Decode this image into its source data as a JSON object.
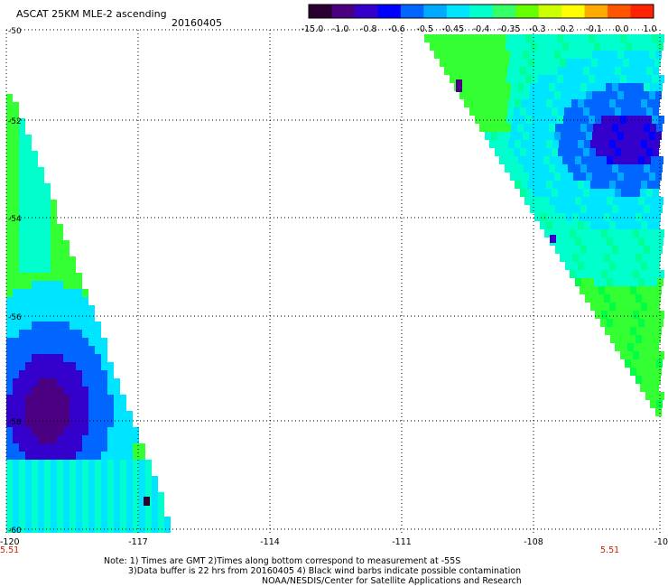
{
  "header": {
    "title": "ASCAT 25KM MLE-2 ascending",
    "date": "20160405"
  },
  "colorbar": {
    "labels": [
      "-15.0",
      "-1.0",
      "-0.8",
      "-0.6",
      "-0.5",
      "-0.45",
      "-0.4",
      "-0.35",
      "-0.3",
      "-0.2",
      "-0.1",
      "0.0",
      "1.0"
    ],
    "colors": [
      "#2a0030",
      "#4b0082",
      "#3300cc",
      "#0000ff",
      "#0066ff",
      "#00aaff",
      "#00e5ff",
      "#00ffcc",
      "#33ff66",
      "#66ff00",
      "#ccff00",
      "#ffff00",
      "#ffaa00",
      "#ff5500",
      "#ff2200"
    ]
  },
  "map": {
    "lat_labels": [
      "-50",
      "-52",
      "-54",
      "-56",
      "-58",
      "-60"
    ],
    "lon_labels": [
      "-120",
      "-117",
      "-114",
      "-111",
      "-108",
      "-10"
    ],
    "time_labels": [
      "5.51",
      "5.51"
    ],
    "time_color": "#cc2200"
  },
  "footer": {
    "line1": "Note: 1) Times are GMT 2)Times along bottom correspond to measurement at -55S",
    "line2": "3)Data buffer is 22 hrs from 20160405 4) Black wind barbs indicate possible contamination",
    "line3": "NOAA/NESDIS/Center for Satellite Applications and Research"
  }
}
